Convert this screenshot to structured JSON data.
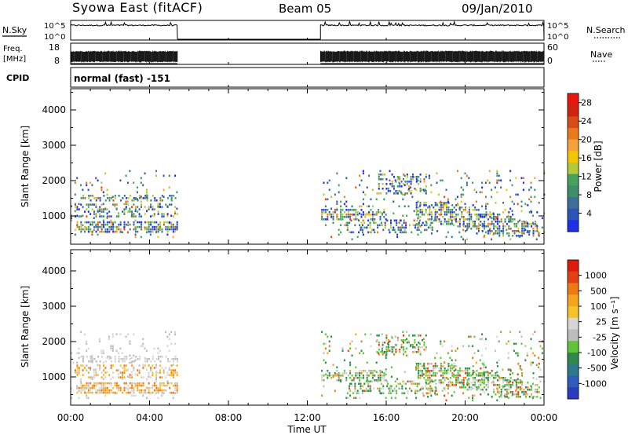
{
  "header": {
    "title_left": "Syowa East (fitACF)",
    "title_center": "Beam 05",
    "title_right": "09/Jan/2010"
  },
  "status_panels": {
    "nsky": {
      "label": "N.Sky",
      "ticks": [
        "10^5",
        "10^0"
      ],
      "right_label": "N.Search",
      "right_ticks": [
        "10^5",
        "10^0"
      ]
    },
    "freq": {
      "label_line1": "Freq.",
      "label_line2": "[MHz]",
      "ticks": [
        "18",
        "8"
      ],
      "right_label": "Nave",
      "right_ticks": [
        "60",
        "0"
      ]
    },
    "cpid": {
      "label": "CPID",
      "program": "normal (fast) -151"
    }
  },
  "time_axis": {
    "ticks": [
      "00:00",
      "04:00",
      "08:00",
      "12:00",
      "16:00",
      "20:00",
      "00:00"
    ],
    "label": "Time UT"
  },
  "colors": {
    "power": [
      "#1f2ee8",
      "#2b55b7",
      "#3d6e9a",
      "#3d8e6a",
      "#45a25d",
      "#b2c93a",
      "#f2c600",
      "#f6a23a",
      "#ea7a1c",
      "#d84c16",
      "#d42210",
      "#e8160c"
    ],
    "velocity": [
      "#2b3bc0",
      "#2e5cba",
      "#2a7a8a",
      "#2d8a4c",
      "#5fc43a",
      "#bdbdbd",
      "#d6d6d6",
      "#f6c22b",
      "#f5a51b",
      "#ed7a12",
      "#e34014",
      "#e11a10"
    ]
  },
  "chart_data": [
    {
      "type": "heatmap",
      "name": "power",
      "ylabel": "Slant Range [km]",
      "yticks": [
        "1000",
        "2000",
        "3000",
        "4000"
      ],
      "ylim": [
        200,
        4600
      ],
      "xlim": [
        "00:00",
        "24:00"
      ],
      "colorbar": {
        "label": "Power [dB]",
        "ticks": [
          "4",
          "8",
          "12",
          "16",
          "20",
          "24",
          "28"
        ],
        "range": [
          0,
          30
        ]
      },
      "data_windows": [
        {
          "start": "00:00",
          "end": "05:25",
          "range_km": [
            300,
            2300
          ]
        },
        {
          "start": "12:40",
          "end": "24:00",
          "range_km": [
            300,
            2300
          ]
        }
      ]
    },
    {
      "type": "heatmap",
      "name": "velocity",
      "ylabel": "Slant Range [km]",
      "yticks": [
        "1000",
        "2000",
        "3000",
        "4000"
      ],
      "ylim": [
        200,
        4600
      ],
      "xlim": [
        "00:00",
        "24:00"
      ],
      "colorbar": {
        "label": "Velocity [m s⁻¹]",
        "ticks": [
          "1000",
          "500",
          "100",
          "25",
          "-25",
          "-100",
          "-500",
          "-1000"
        ],
        "range": [
          -1300,
          1300
        ]
      },
      "data_windows": [
        {
          "start": "00:00",
          "end": "05:25",
          "range_km": [
            300,
            2300
          ]
        },
        {
          "start": "12:40",
          "end": "24:00",
          "range_km": [
            300,
            2300
          ]
        }
      ]
    }
  ]
}
